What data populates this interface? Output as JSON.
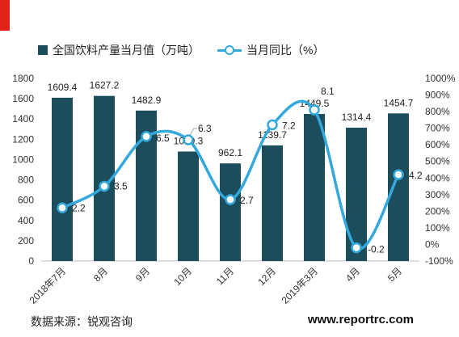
{
  "colors": {
    "accent": "#e2231a",
    "bar": "#1b4d5c",
    "line": "#33a8dc",
    "marker_fill": "#ffffff",
    "axis": "#bfbfbf",
    "text": "#222222"
  },
  "legend": {
    "placement": "top-left"
  },
  "chart_data": {
    "type": "bar",
    "categories": [
      "2018年7月",
      "8月",
      "9月",
      "10月",
      "11月",
      "12月",
      "2019年3月",
      "4月",
      "5月"
    ],
    "series": [
      {
        "name": "全国饮料产量当月值（万吨）",
        "type": "bar",
        "axis": "left",
        "values": [
          1609.4,
          1627.2,
          1482.9,
          1079.3,
          962.1,
          1139.7,
          1449.5,
          1314.4,
          1454.7
        ]
      },
      {
        "name": "当月同比（%）",
        "type": "line",
        "axis": "right",
        "smooth": true,
        "marker": "circle",
        "values": [
          2.2,
          3.5,
          6.5,
          6.3,
          2.7,
          7.2,
          8.1,
          -0.2,
          4.2
        ]
      }
    ],
    "y_left": {
      "ylim": [
        0,
        1800
      ],
      "tick_labels": [
        "0",
        "200",
        "400",
        "600",
        "800",
        "1000",
        "1200",
        "1400",
        "1600",
        "1800"
      ]
    },
    "y_right": {
      "ylim": [
        -1,
        10
      ],
      "tick_labels": [
        "-100%",
        "0%",
        "100%",
        "200%",
        "300%",
        "400%",
        "500%",
        "600%",
        "700%",
        "800%",
        "900%",
        "1000%"
      ]
    },
    "xlabel": "",
    "ylabel": "",
    "grid": false
  },
  "footer": {
    "source": "数据来源：锐观咨询",
    "website": "www.reportrc.com"
  }
}
